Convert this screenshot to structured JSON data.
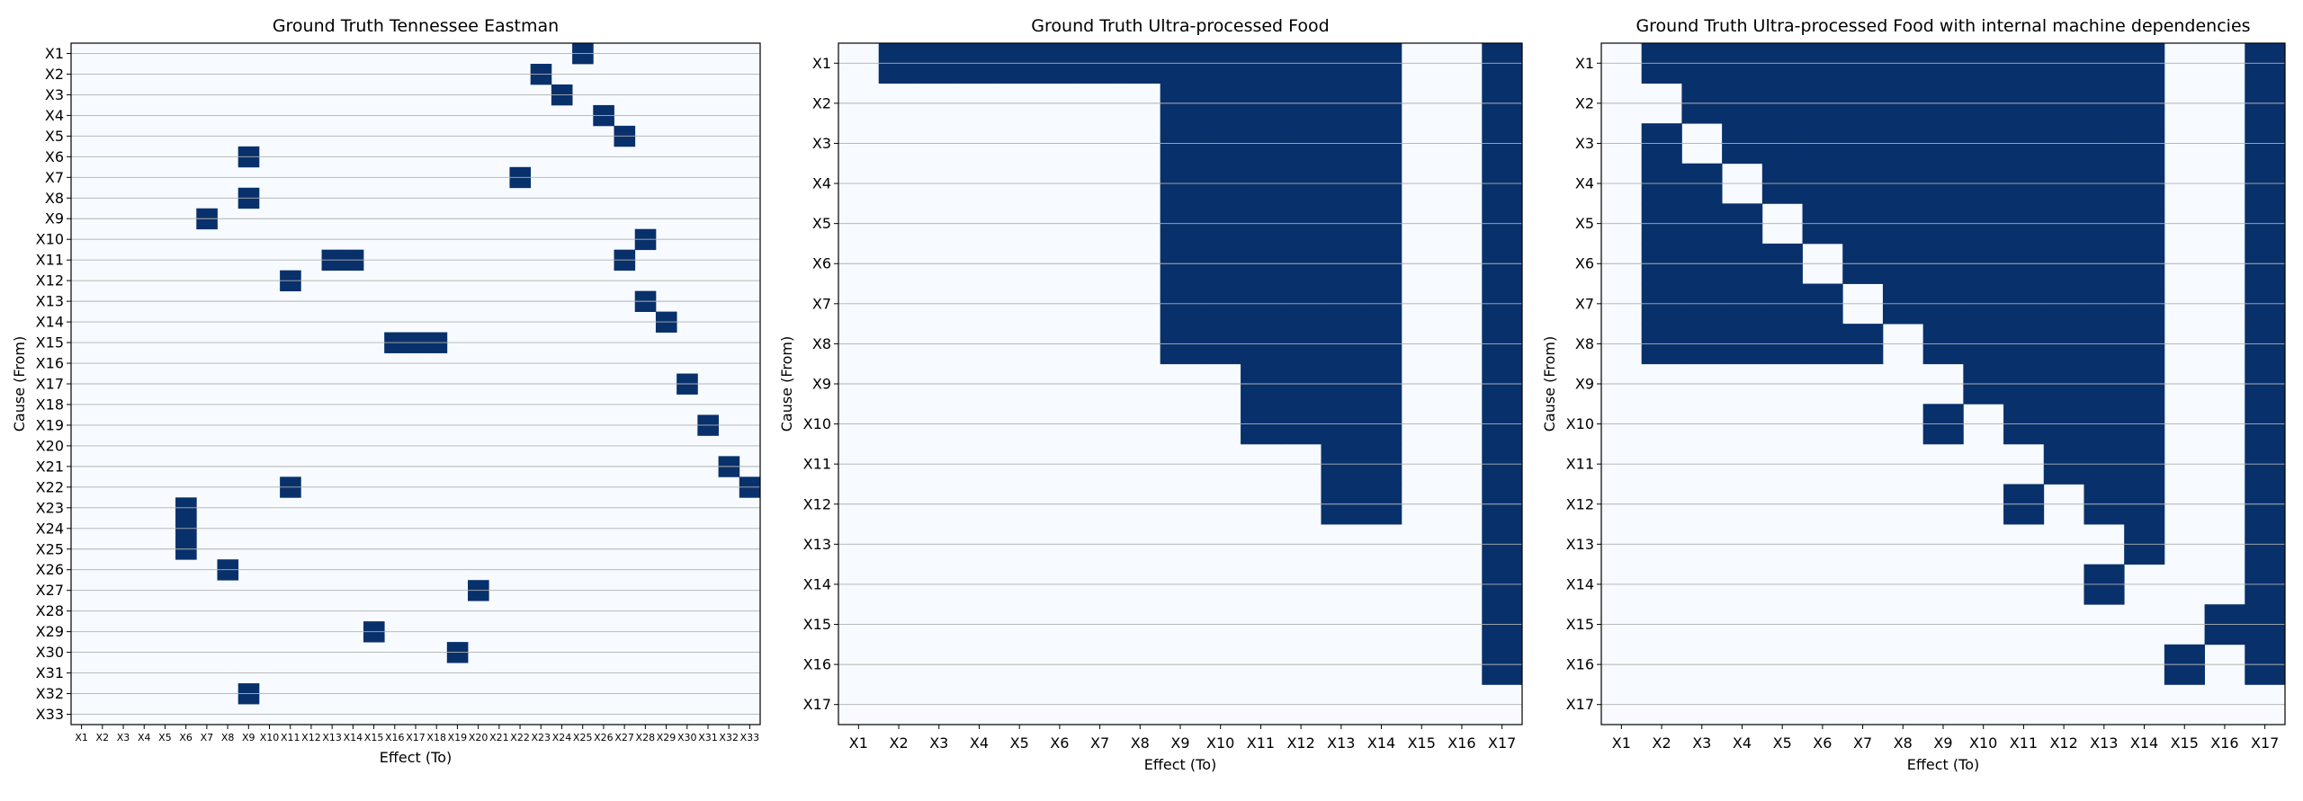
{
  "colors": {
    "edge": "#08306b",
    "background": "#f7fbff",
    "gridline": "#b0b0b0",
    "frame": "#000000"
  },
  "chart_data": [
    {
      "type": "heatmap",
      "title": "Ground Truth Tennessee Eastman",
      "xlabel": "Effect (To)",
      "ylabel": "Cause (From)",
      "labels": [
        "X1",
        "X2",
        "X3",
        "X4",
        "X5",
        "X6",
        "X7",
        "X8",
        "X9",
        "X10",
        "X11",
        "X12",
        "X13",
        "X14",
        "X15",
        "X16",
        "X17",
        "X18",
        "X19",
        "X20",
        "X21",
        "X22",
        "X23",
        "X24",
        "X25",
        "X26",
        "X27",
        "X28",
        "X29",
        "X30",
        "X31",
        "X32",
        "X33"
      ],
      "edges": [
        [
          "X1",
          "X25"
        ],
        [
          "X2",
          "X23"
        ],
        [
          "X3",
          "X24"
        ],
        [
          "X4",
          "X26"
        ],
        [
          "X5",
          "X27"
        ],
        [
          "X6",
          "X9"
        ],
        [
          "X7",
          "X22"
        ],
        [
          "X8",
          "X9"
        ],
        [
          "X9",
          "X7"
        ],
        [
          "X10",
          "X28"
        ],
        [
          "X11",
          "X13"
        ],
        [
          "X11",
          "X14"
        ],
        [
          "X11",
          "X27"
        ],
        [
          "X12",
          "X11"
        ],
        [
          "X13",
          "X28"
        ],
        [
          "X14",
          "X29"
        ],
        [
          "X15",
          "X16"
        ],
        [
          "X15",
          "X17"
        ],
        [
          "X15",
          "X18"
        ],
        [
          "X17",
          "X30"
        ],
        [
          "X19",
          "X31"
        ],
        [
          "X21",
          "X32"
        ],
        [
          "X22",
          "X11"
        ],
        [
          "X22",
          "X33"
        ],
        [
          "X23",
          "X6"
        ],
        [
          "X24",
          "X6"
        ],
        [
          "X25",
          "X6"
        ],
        [
          "X26",
          "X8"
        ],
        [
          "X27",
          "X20"
        ],
        [
          "X29",
          "X15"
        ],
        [
          "X30",
          "X19"
        ],
        [
          "X32",
          "X9"
        ]
      ],
      "grid": "horizontal"
    },
    {
      "type": "heatmap",
      "title": "Ground Truth Ultra-processed Food",
      "xlabel": "Effect (To)",
      "ylabel": "Cause (From)",
      "labels": [
        "X1",
        "X2",
        "X3",
        "X4",
        "X5",
        "X6",
        "X7",
        "X8",
        "X9",
        "X10",
        "X11",
        "X12",
        "X13",
        "X14",
        "X15",
        "X16",
        "X17"
      ],
      "matrix": [
        [
          0,
          1,
          1,
          1,
          1,
          1,
          1,
          1,
          1,
          1,
          1,
          1,
          1,
          1,
          0,
          0,
          1
        ],
        [
          0,
          0,
          0,
          0,
          0,
          0,
          0,
          0,
          1,
          1,
          1,
          1,
          1,
          1,
          0,
          0,
          1
        ],
        [
          0,
          0,
          0,
          0,
          0,
          0,
          0,
          0,
          1,
          1,
          1,
          1,
          1,
          1,
          0,
          0,
          1
        ],
        [
          0,
          0,
          0,
          0,
          0,
          0,
          0,
          0,
          1,
          1,
          1,
          1,
          1,
          1,
          0,
          0,
          1
        ],
        [
          0,
          0,
          0,
          0,
          0,
          0,
          0,
          0,
          1,
          1,
          1,
          1,
          1,
          1,
          0,
          0,
          1
        ],
        [
          0,
          0,
          0,
          0,
          0,
          0,
          0,
          0,
          1,
          1,
          1,
          1,
          1,
          1,
          0,
          0,
          1
        ],
        [
          0,
          0,
          0,
          0,
          0,
          0,
          0,
          0,
          1,
          1,
          1,
          1,
          1,
          1,
          0,
          0,
          1
        ],
        [
          0,
          0,
          0,
          0,
          0,
          0,
          0,
          0,
          1,
          1,
          1,
          1,
          1,
          1,
          0,
          0,
          1
        ],
        [
          0,
          0,
          0,
          0,
          0,
          0,
          0,
          0,
          0,
          0,
          1,
          1,
          1,
          1,
          0,
          0,
          1
        ],
        [
          0,
          0,
          0,
          0,
          0,
          0,
          0,
          0,
          0,
          0,
          1,
          1,
          1,
          1,
          0,
          0,
          1
        ],
        [
          0,
          0,
          0,
          0,
          0,
          0,
          0,
          0,
          0,
          0,
          0,
          0,
          1,
          1,
          0,
          0,
          1
        ],
        [
          0,
          0,
          0,
          0,
          0,
          0,
          0,
          0,
          0,
          0,
          0,
          0,
          1,
          1,
          0,
          0,
          1
        ],
        [
          0,
          0,
          0,
          0,
          0,
          0,
          0,
          0,
          0,
          0,
          0,
          0,
          0,
          0,
          0,
          0,
          1
        ],
        [
          0,
          0,
          0,
          0,
          0,
          0,
          0,
          0,
          0,
          0,
          0,
          0,
          0,
          0,
          0,
          0,
          1
        ],
        [
          0,
          0,
          0,
          0,
          0,
          0,
          0,
          0,
          0,
          0,
          0,
          0,
          0,
          0,
          0,
          0,
          1
        ],
        [
          0,
          0,
          0,
          0,
          0,
          0,
          0,
          0,
          0,
          0,
          0,
          0,
          0,
          0,
          0,
          0,
          1
        ],
        [
          0,
          0,
          0,
          0,
          0,
          0,
          0,
          0,
          0,
          0,
          0,
          0,
          0,
          0,
          0,
          0,
          0
        ]
      ],
      "grid": "horizontal"
    },
    {
      "type": "heatmap",
      "title": "Ground Truth Ultra-processed Food with internal machine dependencies",
      "xlabel": "Effect (To)",
      "ylabel": "Cause (From)",
      "labels": [
        "X1",
        "X2",
        "X3",
        "X4",
        "X5",
        "X6",
        "X7",
        "X8",
        "X9",
        "X10",
        "X11",
        "X12",
        "X13",
        "X14",
        "X15",
        "X16",
        "X17"
      ],
      "matrix": [
        [
          0,
          1,
          1,
          1,
          1,
          1,
          1,
          1,
          1,
          1,
          1,
          1,
          1,
          1,
          0,
          0,
          1
        ],
        [
          0,
          0,
          1,
          1,
          1,
          1,
          1,
          1,
          1,
          1,
          1,
          1,
          1,
          1,
          0,
          0,
          1
        ],
        [
          0,
          1,
          0,
          1,
          1,
          1,
          1,
          1,
          1,
          1,
          1,
          1,
          1,
          1,
          0,
          0,
          1
        ],
        [
          0,
          1,
          1,
          0,
          1,
          1,
          1,
          1,
          1,
          1,
          1,
          1,
          1,
          1,
          0,
          0,
          1
        ],
        [
          0,
          1,
          1,
          1,
          0,
          1,
          1,
          1,
          1,
          1,
          1,
          1,
          1,
          1,
          0,
          0,
          1
        ],
        [
          0,
          1,
          1,
          1,
          1,
          0,
          1,
          1,
          1,
          1,
          1,
          1,
          1,
          1,
          0,
          0,
          1
        ],
        [
          0,
          1,
          1,
          1,
          1,
          1,
          0,
          1,
          1,
          1,
          1,
          1,
          1,
          1,
          0,
          0,
          1
        ],
        [
          0,
          1,
          1,
          1,
          1,
          1,
          1,
          0,
          1,
          1,
          1,
          1,
          1,
          1,
          0,
          0,
          1
        ],
        [
          0,
          0,
          0,
          0,
          0,
          0,
          0,
          0,
          0,
          1,
          1,
          1,
          1,
          1,
          0,
          0,
          1
        ],
        [
          0,
          0,
          0,
          0,
          0,
          0,
          0,
          0,
          1,
          0,
          1,
          1,
          1,
          1,
          0,
          0,
          1
        ],
        [
          0,
          0,
          0,
          0,
          0,
          0,
          0,
          0,
          0,
          0,
          0,
          1,
          1,
          1,
          0,
          0,
          1
        ],
        [
          0,
          0,
          0,
          0,
          0,
          0,
          0,
          0,
          0,
          0,
          1,
          0,
          1,
          1,
          0,
          0,
          1
        ],
        [
          0,
          0,
          0,
          0,
          0,
          0,
          0,
          0,
          0,
          0,
          0,
          0,
          0,
          1,
          0,
          0,
          1
        ],
        [
          0,
          0,
          0,
          0,
          0,
          0,
          0,
          0,
          0,
          0,
          0,
          0,
          1,
          0,
          0,
          0,
          1
        ],
        [
          0,
          0,
          0,
          0,
          0,
          0,
          0,
          0,
          0,
          0,
          0,
          0,
          0,
          0,
          0,
          1,
          1
        ],
        [
          0,
          0,
          0,
          0,
          0,
          0,
          0,
          0,
          0,
          0,
          0,
          0,
          0,
          0,
          1,
          0,
          1
        ],
        [
          0,
          0,
          0,
          0,
          0,
          0,
          0,
          0,
          0,
          0,
          0,
          0,
          0,
          0,
          0,
          0,
          0
        ]
      ],
      "grid": "horizontal"
    }
  ]
}
